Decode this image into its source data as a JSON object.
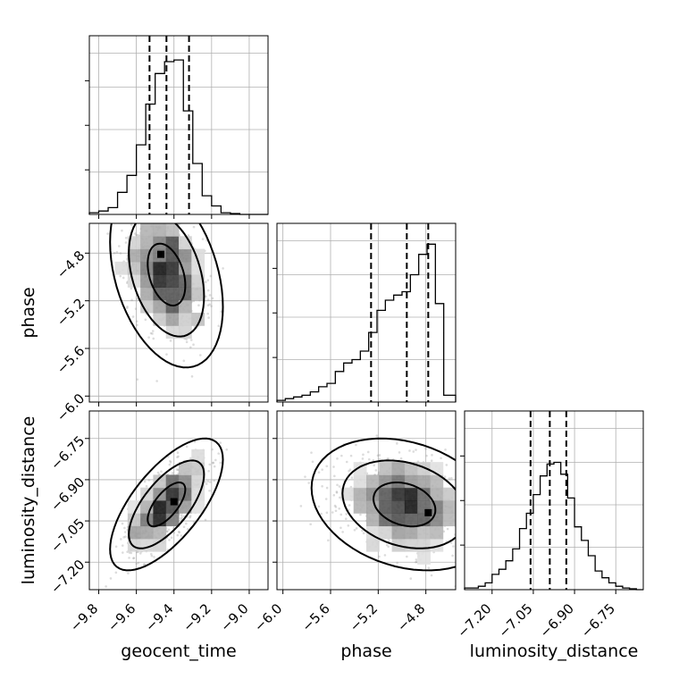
{
  "chart_data": {
    "type": "corner",
    "parameters": [
      "geocent_time",
      "phase",
      "luminosity_distance"
    ],
    "axes": {
      "geocent_time": {
        "range": [
          -9.85,
          -8.9
        ],
        "ticks": [
          -9.8,
          -9.6,
          -9.4,
          -9.2,
          -9.0
        ],
        "tick_labels": [
          "−9.8",
          "−9.6",
          "−9.4",
          "−9.2",
          "−9.0"
        ]
      },
      "phase": {
        "range": [
          -6.05,
          -4.55
        ],
        "ticks": [
          -6.0,
          -5.6,
          -5.2,
          -4.8
        ],
        "tick_labels": [
          "−6.0",
          "−5.6",
          "−5.2",
          "−4.8"
        ]
      },
      "luminosity_distance": {
        "range": [
          -7.3,
          -6.65
        ],
        "ticks": [
          -7.2,
          -7.05,
          -6.9,
          -6.75
        ],
        "tick_labels": [
          "−7.20",
          "−7.05",
          "−6.90",
          "−6.75"
        ]
      }
    },
    "histograms": [
      {
        "parameter": "geocent_time",
        "bins": [
          -9.85,
          -9.8,
          -9.75,
          -9.7,
          -9.65,
          -9.6,
          -9.55,
          -9.5,
          -9.45,
          -9.4,
          -9.35,
          -9.3,
          -9.25,
          -9.2,
          -9.15,
          -9.1,
          -9.05,
          -9.0,
          -8.95,
          -8.9
        ],
        "counts": [
          0.01,
          0.02,
          0.04,
          0.13,
          0.23,
          0.41,
          0.65,
          0.83,
          0.9,
          0.91,
          0.61,
          0.3,
          0.11,
          0.05,
          0.01,
          0.005,
          0,
          0,
          0
        ],
        "quantiles": [
          -9.53,
          -9.44,
          -9.32
        ]
      },
      {
        "parameter": "phase",
        "bins": [
          -6.05,
          -5.98,
          -5.91,
          -5.84,
          -5.77,
          -5.7,
          -5.63,
          -5.56,
          -5.49,
          -5.42,
          -5.35,
          -5.28,
          -5.21,
          -5.14,
          -5.07,
          -5.0,
          -4.93,
          -4.86,
          -4.79,
          -4.72,
          -4.65,
          -4.55
        ],
        "counts": [
          0.01,
          0.02,
          0.03,
          0.04,
          0.06,
          0.09,
          0.11,
          0.18,
          0.23,
          0.25,
          0.3,
          0.41,
          0.54,
          0.6,
          0.63,
          0.65,
          0.75,
          0.87,
          0.93,
          0.58,
          0.04
        ],
        "quantiles": [
          -5.26,
          -4.96,
          -4.78
        ]
      },
      {
        "parameter": "luminosity_distance",
        "bins": [
          -7.3,
          -7.275,
          -7.25,
          -7.225,
          -7.2,
          -7.175,
          -7.15,
          -7.125,
          -7.1,
          -7.075,
          -7.05,
          -7.025,
          -7.0,
          -6.975,
          -6.95,
          -6.925,
          -6.9,
          -6.875,
          -6.85,
          -6.825,
          -6.8,
          -6.775,
          -6.75,
          -6.725,
          -6.7,
          -6.675,
          -6.65
        ],
        "counts": [
          0.01,
          0.01,
          0.02,
          0.04,
          0.09,
          0.12,
          0.17,
          0.24,
          0.36,
          0.45,
          0.56,
          0.67,
          0.74,
          0.75,
          0.68,
          0.54,
          0.37,
          0.29,
          0.2,
          0.11,
          0.07,
          0.04,
          0.02,
          0.01,
          0.005,
          0
        ],
        "quantiles": [
          -7.06,
          -6.99,
          -6.93
        ]
      }
    ],
    "pairs": [
      {
        "x": "geocent_time",
        "y": "phase",
        "mean": [
          -9.44,
          -4.98
        ],
        "sd": [
          0.1,
          0.26
        ],
        "rho": -0.35,
        "skew_y": "toward -4.8",
        "contour_levels": [
          "39%",
          "86%",
          "99%"
        ],
        "density_peak": [
          -9.47,
          -4.81
        ]
      },
      {
        "x": "geocent_time",
        "y": "luminosity_distance",
        "mean": [
          -9.44,
          -6.99
        ],
        "sd": [
          0.1,
          0.08
        ],
        "rho": 0.68,
        "contour_levels": [
          "39%",
          "86%",
          "99%"
        ],
        "density_peak": [
          -9.4,
          -6.98
        ]
      },
      {
        "x": "phase",
        "y": "luminosity_distance",
        "mean": [
          -4.98,
          -6.99
        ],
        "sd": [
          0.26,
          0.08
        ],
        "rho": -0.25,
        "skew_x": "toward -4.8",
        "contour_levels": [
          "39%",
          "86%",
          "99%"
        ],
        "density_peak": [
          -4.78,
          -7.02
        ]
      }
    ],
    "grid": true,
    "xlabel_bottom": [
      "geocent_time",
      "phase",
      "luminosity_distance"
    ],
    "ylabel_left": [
      "phase",
      "luminosity_distance"
    ]
  }
}
